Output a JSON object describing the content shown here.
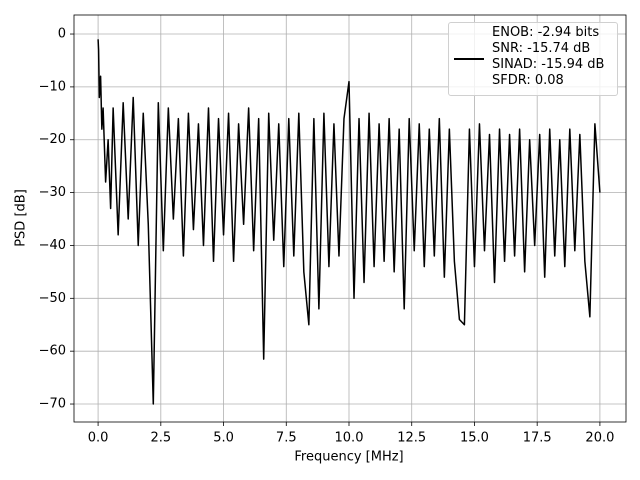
{
  "chart_data": {
    "type": "line",
    "xlabel": "Frequency [MHz]",
    "ylabel": "PSD [dB]",
    "x": [
      0,
      0.02,
      0.05,
      0.1,
      0.15,
      0.2,
      0.3,
      0.4,
      0.5,
      0.6,
      0.8,
      1.0,
      1.2,
      1.4,
      1.6,
      1.8,
      2.0,
      2.2,
      2.4,
      2.6,
      2.8,
      3.0,
      3.2,
      3.4,
      3.6,
      3.8,
      4.0,
      4.2,
      4.4,
      4.6,
      4.8,
      5.0,
      5.2,
      5.4,
      5.6,
      5.8,
      6.0,
      6.2,
      6.4,
      6.6,
      6.8,
      7.0,
      7.2,
      7.4,
      7.6,
      7.8,
      8.0,
      8.2,
      8.4,
      8.6,
      8.8,
      9.0,
      9.2,
      9.4,
      9.6,
      9.8,
      10.0,
      10.2,
      10.4,
      10.6,
      10.8,
      11.0,
      11.2,
      11.4,
      11.6,
      11.8,
      12.0,
      12.2,
      12.4,
      12.6,
      12.8,
      13.0,
      13.2,
      13.4,
      13.6,
      13.8,
      14.0,
      14.2,
      14.4,
      14.6,
      14.8,
      15.0,
      15.2,
      15.4,
      15.6,
      15.8,
      16.0,
      16.2,
      16.4,
      16.6,
      16.8,
      17.0,
      17.2,
      17.4,
      17.6,
      17.8,
      18.0,
      18.2,
      18.4,
      18.6,
      18.8,
      19.0,
      19.2,
      19.4,
      19.6,
      19.8,
      20.0
    ],
    "series": [
      {
        "name": "ENOB: -2.94 bits\nSNR: -15.74 dB\nSINAD: -15.94 dB\nSFDR: 0.08",
        "color": "#000000",
        "values": [
          -1,
          -3,
          -12,
          -8,
          -18,
          -14,
          -28,
          -20,
          -33,
          -14,
          -38,
          -13,
          -35,
          -12,
          -40,
          -15,
          -36,
          -70,
          -13,
          -41,
          -14,
          -35,
          -16,
          -42,
          -15,
          -37,
          -17,
          -40,
          -14,
          -43,
          -16,
          -38,
          -15,
          -43,
          -17,
          -36,
          -14,
          -41,
          -16,
          -61.5,
          -15,
          -39,
          -17,
          -44,
          -16,
          -42,
          -15,
          -45,
          -55,
          -16,
          -52,
          -15,
          -44,
          -17,
          -42,
          -16,
          -9,
          -50,
          -16,
          -47,
          -15,
          -44,
          -17,
          -43,
          -16,
          -45,
          -18,
          -52,
          -16,
          -41,
          -17,
          -44,
          -18,
          -42,
          -16,
          -46,
          -18,
          -43,
          -54,
          -55,
          -18,
          -44,
          -17,
          -41,
          -19,
          -47,
          -18,
          -43,
          -19,
          -42,
          -18,
          -45,
          -20,
          -40,
          -19,
          -46,
          -18,
          -42,
          -20,
          -44,
          -18,
          -41,
          -19,
          -43,
          -53.5,
          -17,
          -30
        ]
      }
    ],
    "xlim": [
      -0.96,
      21.04
    ],
    "ylim": [
      -73.4,
      3.6
    ],
    "xticks": [
      {
        "value": 0,
        "label": "0.0"
      },
      2.5,
      {
        "value": 5,
        "label": "5.0"
      },
      7.5,
      {
        "value": 10,
        "label": "10.0"
      },
      12.5,
      {
        "value": 15,
        "label": "15.0"
      },
      17.5,
      {
        "value": 20,
        "label": "20.0"
      }
    ],
    "yticks": [
      0,
      {
        "value": -10,
        "label": "−10"
      },
      {
        "value": -20,
        "label": "−20"
      },
      {
        "value": -30,
        "label": "−30"
      },
      {
        "value": -40,
        "label": "−40"
      },
      {
        "value": -50,
        "label": "−50"
      },
      {
        "value": -60,
        "label": "−60"
      },
      {
        "value": -70,
        "label": "−70"
      }
    ],
    "grid": true,
    "legend": "upper right"
  }
}
